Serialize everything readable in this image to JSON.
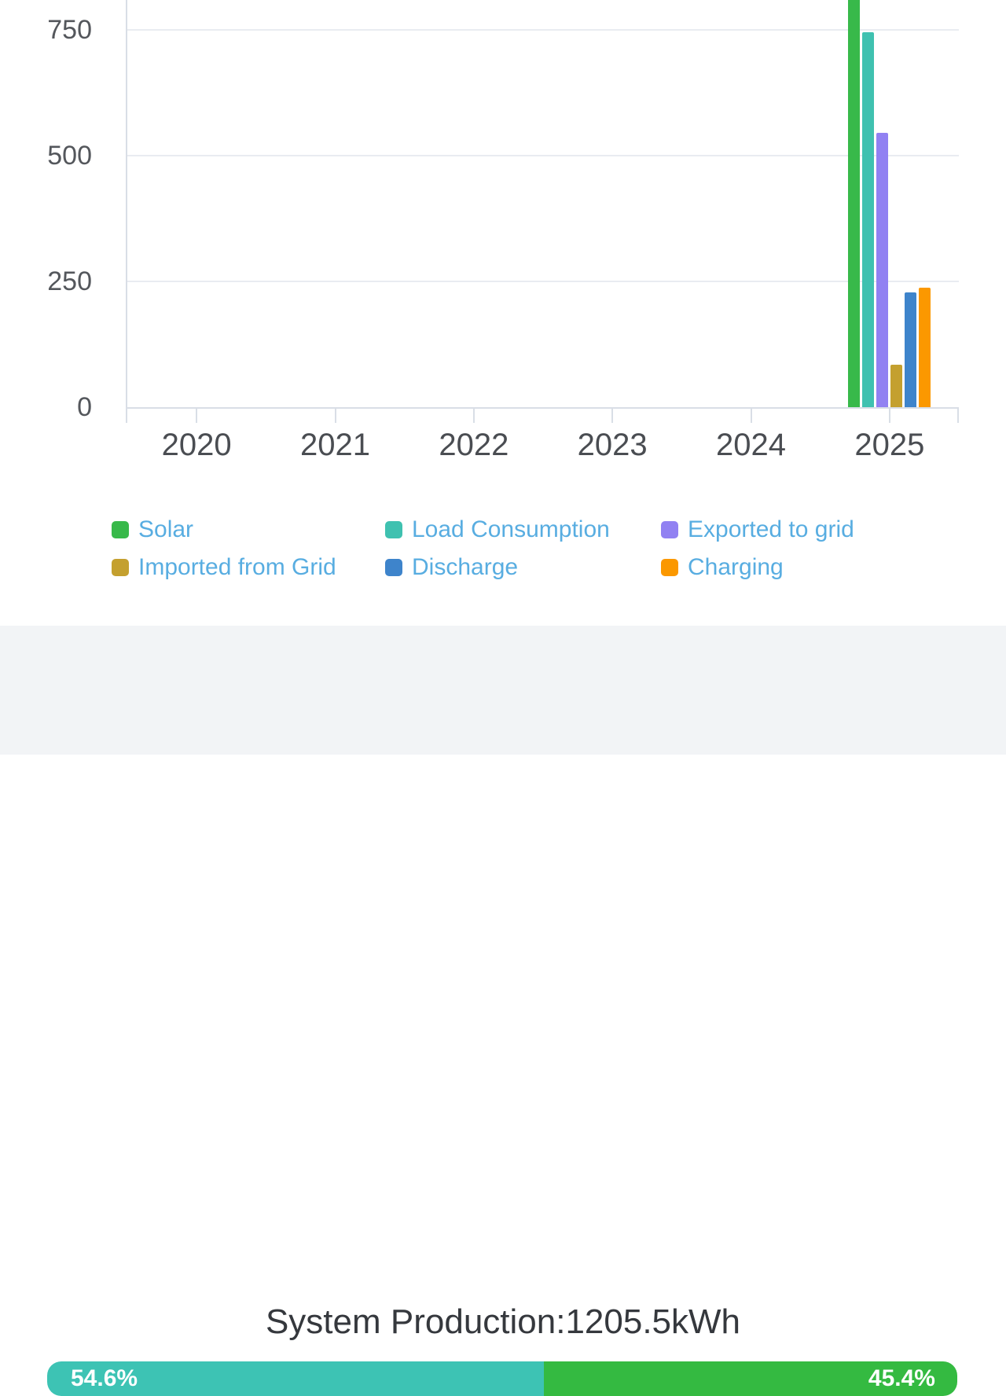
{
  "chart_data": {
    "type": "bar",
    "title": "",
    "categories": [
      "2020",
      "2021",
      "2022",
      "2023",
      "2024",
      "2025"
    ],
    "series": [
      {
        "name": "Solar",
        "color": "#38b94a",
        "values": [
          0,
          0,
          0,
          0,
          0,
          1205.5
        ]
      },
      {
        "name": "Load Consumption",
        "color": "#3fc1b0",
        "values": [
          0,
          0,
          0,
          0,
          0,
          745
        ]
      },
      {
        "name": "Exported to grid",
        "color": "#9181f2",
        "values": [
          0,
          0,
          0,
          0,
          0,
          545
        ]
      },
      {
        "name": "Imported from Grid",
        "color": "#c4a02f",
        "values": [
          0,
          0,
          0,
          0,
          0,
          84
        ]
      },
      {
        "name": "Discharge",
        "color": "#3e84cb",
        "values": [
          0,
          0,
          0,
          0,
          0,
          228
        ]
      },
      {
        "name": "Charging",
        "color": "#fb9800",
        "values": [
          0,
          0,
          0,
          0,
          0,
          238
        ]
      }
    ],
    "yticks": [
      0,
      250,
      500,
      750
    ],
    "ylim_visible": [
      0,
      810
    ],
    "grid": true,
    "legend_position": "bottom",
    "bar_clipped_at_top": "Solar"
  },
  "summary": {
    "title": "System Production:1205.5kWh",
    "progress": {
      "left_label": "54.6%",
      "right_label": "45.4%",
      "left_value": 54.6,
      "right_value": 45.4,
      "left_color": "#3dc3b4",
      "right_color": "#34ba41"
    }
  }
}
